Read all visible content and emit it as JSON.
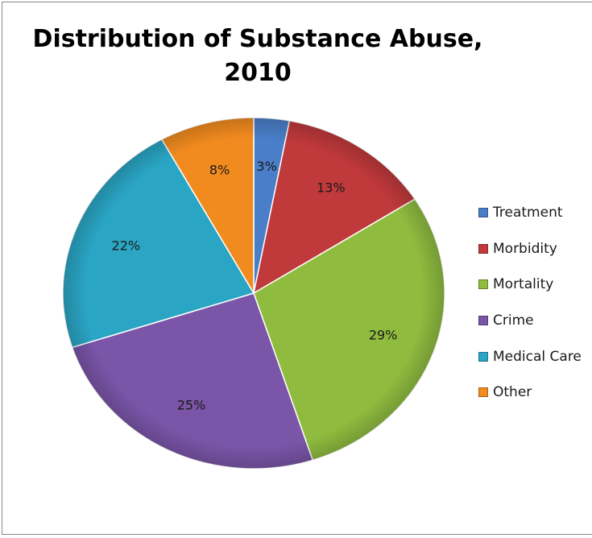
{
  "chart_data": {
    "type": "pie",
    "title": [
      "Distribution of Substance Abuse,",
      "2010"
    ],
    "categories": [
      "Treatment",
      "Morbidity",
      "Mortality",
      "Crime",
      "Medical Care",
      "Other"
    ],
    "values": [
      3,
      13,
      29,
      25,
      22,
      8
    ],
    "labels": [
      "3%",
      "13%",
      "29%",
      "25%",
      "22%",
      "8%"
    ],
    "colors": [
      "#4a7ec8",
      "#c0393b",
      "#8fbc3f",
      "#7a55a8",
      "#2aa5c4",
      "#f28b1f"
    ],
    "legend": {
      "position": "right",
      "entries": [
        "Treatment",
        "Morbidity",
        "Mortality",
        "Crime",
        "Medical Care",
        "Other"
      ]
    }
  }
}
